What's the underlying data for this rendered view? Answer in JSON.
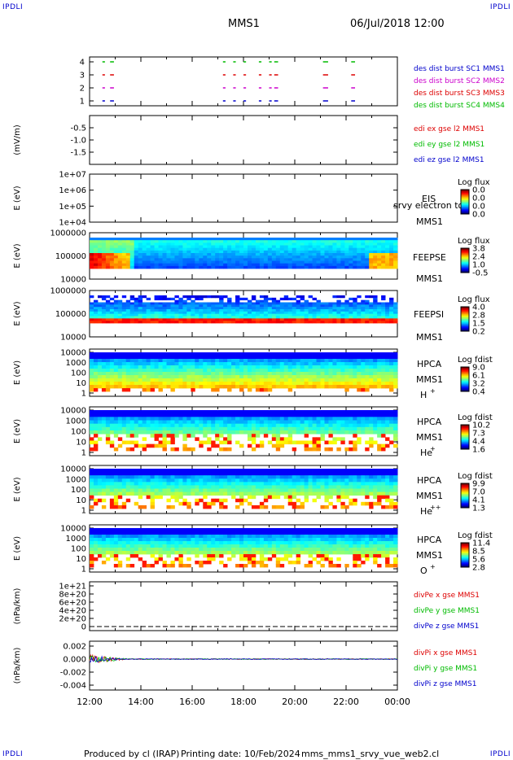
{
  "corner_label": "IPDLI",
  "header": {
    "spacecraft": "MMS1",
    "date": "06/Jul/2018 12:00"
  },
  "footer": {
    "produced_by": "Produced by cl (IRAP)",
    "printing_date": "Printing date: 10/Feb/2024",
    "file_name": "mms_mms1_srvy_vue_web2.cl"
  },
  "time_axis": {
    "ticks": [
      "12:00",
      "14:00",
      "16:00",
      "18:00",
      "20:00",
      "22:00",
      "00:00"
    ]
  },
  "colors": {
    "sc1": "#0000cc",
    "sc2": "#cc00cc",
    "sc3": "#dd0000",
    "sc4": "#00bb00",
    "x": "#dd0000",
    "y": "#00bb00",
    "z": "#0000cc"
  },
  "chart_data": [
    {
      "type": "scatter",
      "panel": "burst",
      "yticks": [
        "4",
        "3",
        "2",
        "1"
      ],
      "series": [
        {
          "name": "des dist burst SC1 MMS1",
          "y": 1
        },
        {
          "name": "des dist burst SC2 MMS2",
          "y": 2
        },
        {
          "name": "des dist burst SC3 MMS3",
          "y": 3
        },
        {
          "name": "des dist burst SC4 MMS4",
          "y": 4
        }
      ],
      "burst_intervals_hours": [
        [
          12.5,
          12.6
        ],
        [
          12.8,
          12.95
        ],
        [
          17.2,
          17.3
        ],
        [
          17.6,
          17.7
        ],
        [
          18.0,
          18.1
        ],
        [
          18.6,
          18.7
        ],
        [
          19.0,
          19.1
        ],
        [
          19.2,
          19.35
        ],
        [
          21.1,
          21.3
        ],
        [
          22.2,
          22.35
        ]
      ]
    },
    {
      "type": "line",
      "panel": "edi",
      "ylabel": "(mV/m)",
      "yticks": [
        "-0.5",
        "-1.0",
        "-1.5"
      ],
      "series": [
        {
          "name": "edi ex gse l2 MMS1"
        },
        {
          "name": "edi ey gse l2 MMS1"
        },
        {
          "name": "edi ez gse l2 MMS1"
        }
      ]
    },
    {
      "type": "heatmap",
      "panel": "eis",
      "ylabel": "E (eV)",
      "yticks": [
        "1e+07",
        "1e+06",
        "1e+05",
        "1e+04"
      ],
      "instrument": "EIS",
      "overlay": "srvy electron tof",
      "spacecraft": "MMS1",
      "colorbar": {
        "title": "Log flux",
        "ticks": [
          "0.0",
          "0.0",
          "0.0",
          "0.0"
        ]
      }
    },
    {
      "type": "heatmap",
      "panel": "feeps_e",
      "ylabel": "E (eV)",
      "yticks": [
        "1000000",
        "100000",
        "10000"
      ],
      "instrument": "FEEPSE",
      "spacecraft": "MMS1",
      "colorbar": {
        "title": "Log flux",
        "ticks": [
          "3.8",
          "2.4",
          "1.0",
          "-0.5"
        ]
      }
    },
    {
      "type": "heatmap",
      "panel": "feeps_i",
      "ylabel": "E (eV)",
      "yticks": [
        "1000000",
        "100000",
        "10000"
      ],
      "instrument": "FEEPSI",
      "spacecraft": "MMS1",
      "colorbar": {
        "title": "Log flux",
        "ticks": [
          "4.0",
          "2.8",
          "1.5",
          "0.2"
        ]
      }
    },
    {
      "type": "heatmap",
      "panel": "hpca_h",
      "ylabel": "E (eV)",
      "yticks": [
        "10000",
        "1000",
        "100",
        "10",
        "1"
      ],
      "instrument": "HPCA",
      "spacecraft": "MMS1",
      "species": "H",
      "charge": "+",
      "colorbar": {
        "title": "Log fdist",
        "ticks": [
          "9.0",
          "6.1",
          "3.2",
          "0.4"
        ]
      }
    },
    {
      "type": "heatmap",
      "panel": "hpca_he1",
      "ylabel": "E (eV)",
      "yticks": [
        "10000",
        "1000",
        "100",
        "10",
        "1"
      ],
      "instrument": "HPCA",
      "spacecraft": "MMS1",
      "species": "He",
      "charge": "+",
      "colorbar": {
        "title": "Log fdist",
        "ticks": [
          "10.2",
          "7.3",
          "4.4",
          "1.6"
        ]
      }
    },
    {
      "type": "heatmap",
      "panel": "hpca_he2",
      "ylabel": "E (eV)",
      "yticks": [
        "10000",
        "1000",
        "100",
        "10",
        "1"
      ],
      "instrument": "HPCA",
      "spacecraft": "MMS1",
      "species": "He",
      "charge": "++",
      "colorbar": {
        "title": "Log fdist",
        "ticks": [
          "9.9",
          "7.0",
          "4.1",
          "1.3"
        ]
      }
    },
    {
      "type": "heatmap",
      "panel": "hpca_o",
      "ylabel": "E (eV)",
      "yticks": [
        "10000",
        "1000",
        "100",
        "10",
        "1"
      ],
      "instrument": "HPCA",
      "spacecraft": "MMS1",
      "species": "O",
      "charge": "+",
      "colorbar": {
        "title": "Log fdist",
        "ticks": [
          "11.4",
          "8.5",
          "5.6",
          "2.8"
        ]
      }
    },
    {
      "type": "line",
      "panel": "divpe",
      "ylabel": "(nPa/km)",
      "yticks": [
        "1e+21",
        "8e+20",
        "6e+20",
        "4e+20",
        "2e+20",
        "0"
      ],
      "series": [
        {
          "name": "divPe x gse MMS1"
        },
        {
          "name": "divPe y gse MMS1"
        },
        {
          "name": "divPe z gse MMS1"
        }
      ]
    },
    {
      "type": "line",
      "panel": "divpi",
      "ylabel": "(nPa/km)",
      "yticks": [
        "0.002",
        "0.000",
        "-0.002",
        "-0.004"
      ],
      "ylim": [
        -0.004,
        0.0025
      ],
      "series": [
        {
          "name": "divPi x gse MMS1"
        },
        {
          "name": "divPi y gse MMS1"
        },
        {
          "name": "divPi z gse MMS1"
        }
      ]
    }
  ]
}
